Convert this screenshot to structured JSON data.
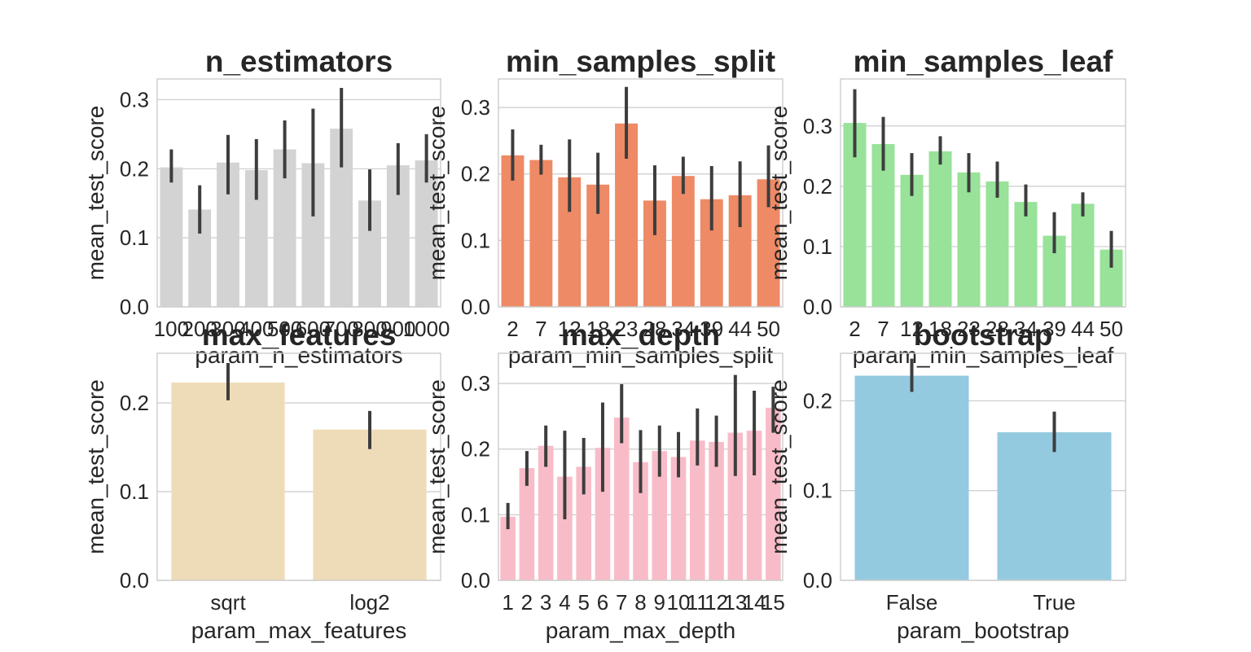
{
  "chart_data": [
    {
      "type": "bar",
      "title": "n_estimators",
      "xlabel": "param_n_estimators",
      "ylabel": "mean_test_score",
      "color": "#d3d3d3",
      "categories": [
        "100",
        "200",
        "300",
        "400",
        "500",
        "600",
        "700",
        "800",
        "900",
        "1000"
      ],
      "values": [
        0.202,
        0.141,
        0.209,
        0.198,
        0.228,
        0.208,
        0.258,
        0.154,
        0.205,
        0.212
      ],
      "err_low": [
        0.18,
        0.106,
        0.163,
        0.155,
        0.186,
        0.131,
        0.202,
        0.11,
        0.162,
        0.18
      ],
      "err_high": [
        0.228,
        0.176,
        0.249,
        0.243,
        0.27,
        0.287,
        0.317,
        0.199,
        0.237,
        0.25
      ],
      "yticks": [
        "0.0",
        "0.1",
        "0.2",
        "0.3"
      ],
      "ylim": [
        0,
        0.33
      ]
    },
    {
      "type": "bar",
      "title": "min_samples_split",
      "xlabel": "param_min_samples_split",
      "ylabel": "mean_test_score",
      "color": "#ee8a65",
      "categories": [
        "2",
        "7",
        "12",
        "18",
        "23",
        "28",
        "34",
        "39",
        "44",
        "50"
      ],
      "values": [
        0.228,
        0.221,
        0.195,
        0.184,
        0.276,
        0.16,
        0.197,
        0.162,
        0.168,
        0.192
      ],
      "err_low": [
        0.19,
        0.199,
        0.143,
        0.14,
        0.223,
        0.108,
        0.17,
        0.115,
        0.12,
        0.15
      ],
      "err_high": [
        0.267,
        0.244,
        0.252,
        0.232,
        0.331,
        0.213,
        0.226,
        0.212,
        0.219,
        0.243
      ],
      "yticks": [
        "0.0",
        "0.1",
        "0.2",
        "0.3"
      ],
      "ylim": [
        0,
        0.343
      ]
    },
    {
      "type": "bar",
      "title": "min_samples_leaf",
      "xlabel": "param_min_samples_leaf",
      "ylabel": "mean_test_score",
      "color": "#98e29a",
      "categories": [
        "2",
        "7",
        "12",
        "18",
        "23",
        "28",
        "34",
        "39",
        "44",
        "50"
      ],
      "values": [
        0.305,
        0.27,
        0.219,
        0.258,
        0.223,
        0.208,
        0.174,
        0.118,
        0.171,
        0.095
      ],
      "err_low": [
        0.248,
        0.226,
        0.184,
        0.236,
        0.19,
        0.181,
        0.15,
        0.089,
        0.15,
        0.065
      ],
      "err_high": [
        0.361,
        0.315,
        0.255,
        0.283,
        0.255,
        0.241,
        0.203,
        0.157,
        0.19,
        0.126
      ],
      "yticks": [
        "0.0",
        "0.1",
        "0.2",
        "0.3"
      ],
      "ylim": [
        0,
        0.378
      ]
    },
    {
      "type": "bar",
      "title": "max_features",
      "xlabel": "param_max_features",
      "ylabel": "mean_test_score",
      "color": "#eedcb8",
      "categories": [
        "sqrt",
        "log2"
      ],
      "values": [
        0.223,
        0.17
      ],
      "err_low": [
        0.203,
        0.148
      ],
      "err_high": [
        0.245,
        0.191
      ],
      "yticks": [
        "0.0",
        "0.1",
        "0.2"
      ],
      "ylim": [
        0,
        0.256
      ]
    },
    {
      "type": "bar",
      "title": "max_depth",
      "xlabel": "param_max_depth",
      "ylabel": "mean_test_score",
      "color": "#f8bcc8",
      "categories": [
        "1",
        "2",
        "3",
        "4",
        "5",
        "6",
        "7",
        "8",
        "9",
        "10",
        "11",
        "12",
        "13",
        "14",
        "15"
      ],
      "values": [
        0.097,
        0.171,
        0.205,
        0.158,
        0.173,
        0.202,
        0.248,
        0.18,
        0.197,
        0.188,
        0.213,
        0.211,
        0.225,
        0.228,
        0.263
      ],
      "err_low": [
        0.078,
        0.144,
        0.173,
        0.093,
        0.131,
        0.135,
        0.209,
        0.133,
        0.158,
        0.157,
        0.175,
        0.173,
        0.159,
        0.16,
        0.225
      ],
      "err_high": [
        0.118,
        0.197,
        0.236,
        0.228,
        0.217,
        0.271,
        0.299,
        0.229,
        0.236,
        0.226,
        0.262,
        0.251,
        0.313,
        0.289,
        0.295
      ],
      "yticks": [
        "0.0",
        "0.1",
        "0.2",
        "0.3"
      ],
      "ylim": [
        0,
        0.346
      ]
    },
    {
      "type": "bar",
      "title": "bootstrap",
      "xlabel": "param_bootstrap",
      "ylabel": "mean_test_score",
      "color": "#94cadf",
      "categories": [
        "False",
        "True"
      ],
      "values": [
        0.228,
        0.165
      ],
      "err_low": [
        0.21,
        0.143
      ],
      "err_high": [
        0.247,
        0.188
      ],
      "yticks": [
        "0.0",
        "0.1",
        "0.2"
      ],
      "ylim": [
        0,
        0.253
      ]
    }
  ],
  "errorbar_color": "#3d3d3d",
  "grid": true
}
